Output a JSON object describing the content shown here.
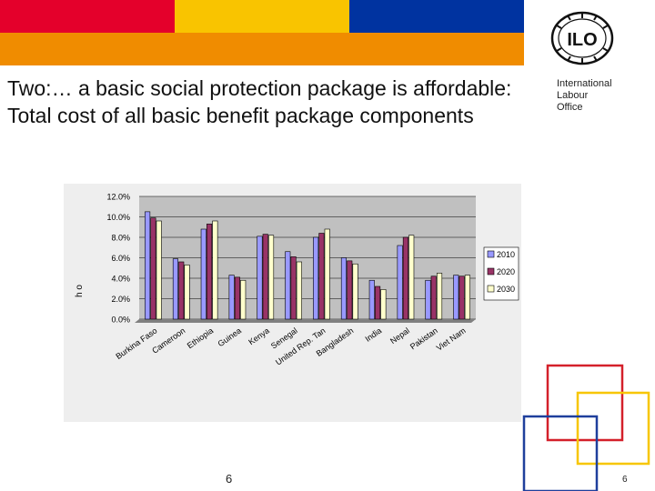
{
  "slide": {
    "title": "Two:… a basic social protection package is affordable: Total cost of all basic benefit package components",
    "org_name_lines": [
      "International",
      "Labour",
      "Office"
    ],
    "logo_text": "ILO",
    "page_number": "6",
    "page_number_right": "6"
  },
  "colors": {
    "band_orange": "#f08c00",
    "band_red": "#e4002b",
    "band_yellow": "#f9c400",
    "band_blue": "#0033a0",
    "square_red": "#d4202a",
    "square_yellow": "#f7c600",
    "square_blue": "#1f3f9c",
    "series_2010": "#9999ff",
    "series_2020": "#993366",
    "series_2030": "#ffffcc",
    "plot_bg": "#c0c0c0"
  },
  "chart_data": {
    "type": "bar",
    "title": "",
    "xlabel": "",
    "ylabel": "h o",
    "categories": [
      "Burkina Faso",
      "Cameroon",
      "Ethiopia",
      "Guinea",
      "Kenya",
      "Senegal",
      "United Rep. Tan",
      "Bangladesh",
      "India",
      "Nepal",
      "Pakistan",
      "Viet Nam"
    ],
    "series": [
      {
        "name": "2010",
        "values": [
          10.5,
          5.9,
          8.8,
          4.3,
          8.1,
          6.6,
          8.0,
          6.0,
          3.8,
          7.2,
          3.8,
          4.3
        ]
      },
      {
        "name": "2020",
        "values": [
          9.9,
          5.6,
          9.3,
          4.1,
          8.3,
          6.1,
          8.4,
          5.7,
          3.2,
          8.0,
          4.2,
          4.2
        ]
      },
      {
        "name": "2030",
        "values": [
          9.6,
          5.3,
          9.6,
          3.8,
          8.2,
          5.6,
          8.8,
          5.4,
          2.9,
          8.2,
          4.5,
          4.3
        ]
      }
    ],
    "ylim": [
      0,
      12
    ],
    "yticks": [
      "0.0%",
      "2.0%",
      "4.0%",
      "6.0%",
      "8.0%",
      "10.0%",
      "12.0%"
    ],
    "grid": true,
    "legend": "right"
  }
}
